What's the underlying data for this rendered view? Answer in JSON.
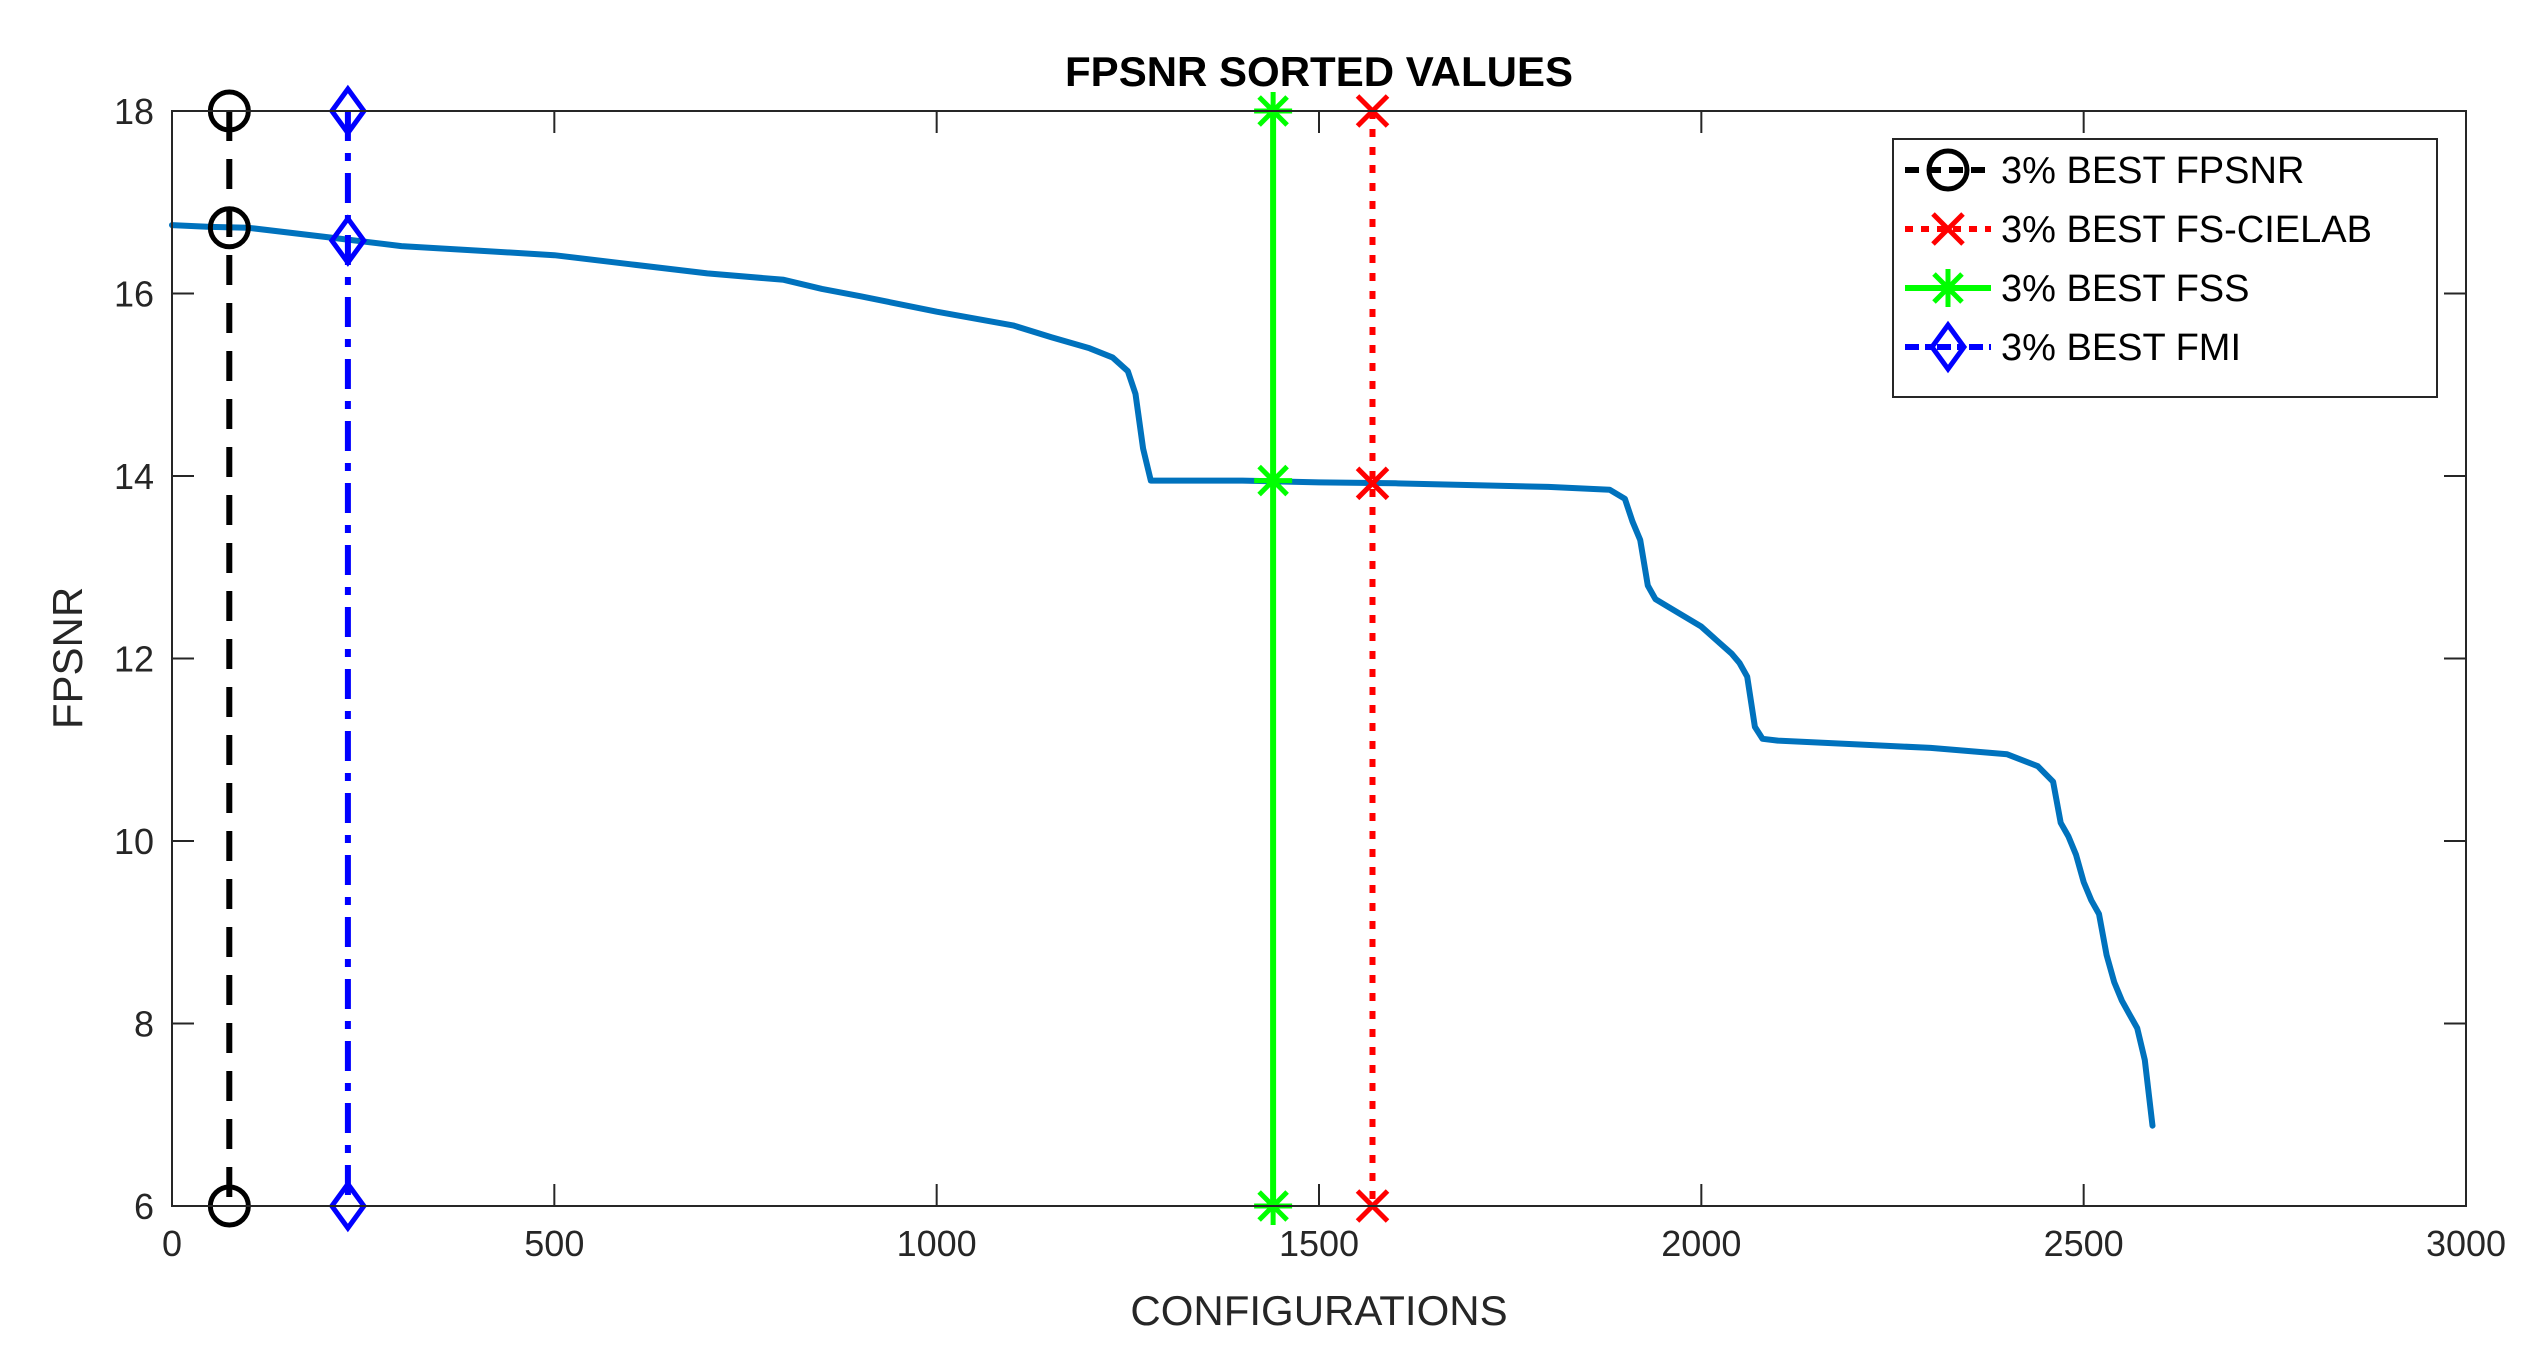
{
  "chart_data": {
    "type": "line",
    "title": "FPSNR SORTED VALUES",
    "xlabel": "CONFIGURATIONS",
    "ylabel": "FPSNR",
    "xlim": [
      0,
      3000
    ],
    "ylim": [
      6,
      18
    ],
    "xticks": [
      0,
      500,
      1000,
      1500,
      2000,
      2500,
      3000
    ],
    "yticks": [
      6,
      8,
      10,
      12,
      14,
      16,
      18
    ],
    "xtick_labels": [
      "0",
      "500",
      "1000",
      "1500",
      "2000",
      "2500",
      "3000"
    ],
    "ytick_labels": [
      "6",
      "8",
      "10",
      "12",
      "14",
      "16",
      "18"
    ],
    "grid": false,
    "legend_position": "top-right",
    "curve": {
      "color": "#0072BD",
      "x": [
        0,
        50,
        100,
        200,
        300,
        400,
        500,
        600,
        700,
        800,
        850,
        900,
        1000,
        1100,
        1150,
        1200,
        1230,
        1250,
        1260,
        1270,
        1280,
        1300,
        1400,
        1500,
        1600,
        1700,
        1800,
        1880,
        1900,
        1910,
        1920,
        1930,
        1940,
        1960,
        1980,
        2000,
        2020,
        2040,
        2050,
        2060,
        2070,
        2080,
        2100,
        2200,
        2300,
        2400,
        2440,
        2460,
        2470,
        2480,
        2490,
        2500,
        2510,
        2520,
        2530,
        2540,
        2550,
        2560,
        2570,
        2580,
        2590
      ],
      "y": [
        16.75,
        16.73,
        16.72,
        16.62,
        16.52,
        16.47,
        16.42,
        16.32,
        16.22,
        16.15,
        16.05,
        15.97,
        15.8,
        15.65,
        15.52,
        15.4,
        15.3,
        15.15,
        14.9,
        14.3,
        13.95,
        13.95,
        13.95,
        13.93,
        13.92,
        13.9,
        13.88,
        13.85,
        13.75,
        13.5,
        13.3,
        12.8,
        12.65,
        12.55,
        12.45,
        12.35,
        12.2,
        12.05,
        11.95,
        11.8,
        11.25,
        11.12,
        11.1,
        11.06,
        11.02,
        10.95,
        10.82,
        10.65,
        10.2,
        10.05,
        9.85,
        9.55,
        9.35,
        9.2,
        8.75,
        8.45,
        8.25,
        8.1,
        7.95,
        7.6,
        6.88
      ]
    },
    "series": [
      {
        "name": "3% BEST FPSNR",
        "color": "#000000",
        "line_style": "dashed",
        "marker": "circle",
        "x": [
          75,
          75,
          75
        ],
        "y": [
          18,
          16.72,
          6
        ]
      },
      {
        "name": "3% BEST FS-CIELAB",
        "color": "#FF0000",
        "line_style": "dotted",
        "marker": "x",
        "x": [
          1570,
          1570,
          1570
        ],
        "y": [
          18,
          13.92,
          6
        ]
      },
      {
        "name": "3% BEST FSS",
        "color": "#00FF00",
        "line_style": "solid",
        "marker": "asterisk",
        "x": [
          1440,
          1440,
          1440
        ],
        "y": [
          18,
          13.95,
          6
        ]
      },
      {
        "name": "3% BEST FMI",
        "color": "#0000FF",
        "line_style": "dashdot",
        "marker": "diamond",
        "x": [
          230,
          230,
          230
        ],
        "y": [
          18,
          16.58,
          6
        ]
      }
    ]
  }
}
